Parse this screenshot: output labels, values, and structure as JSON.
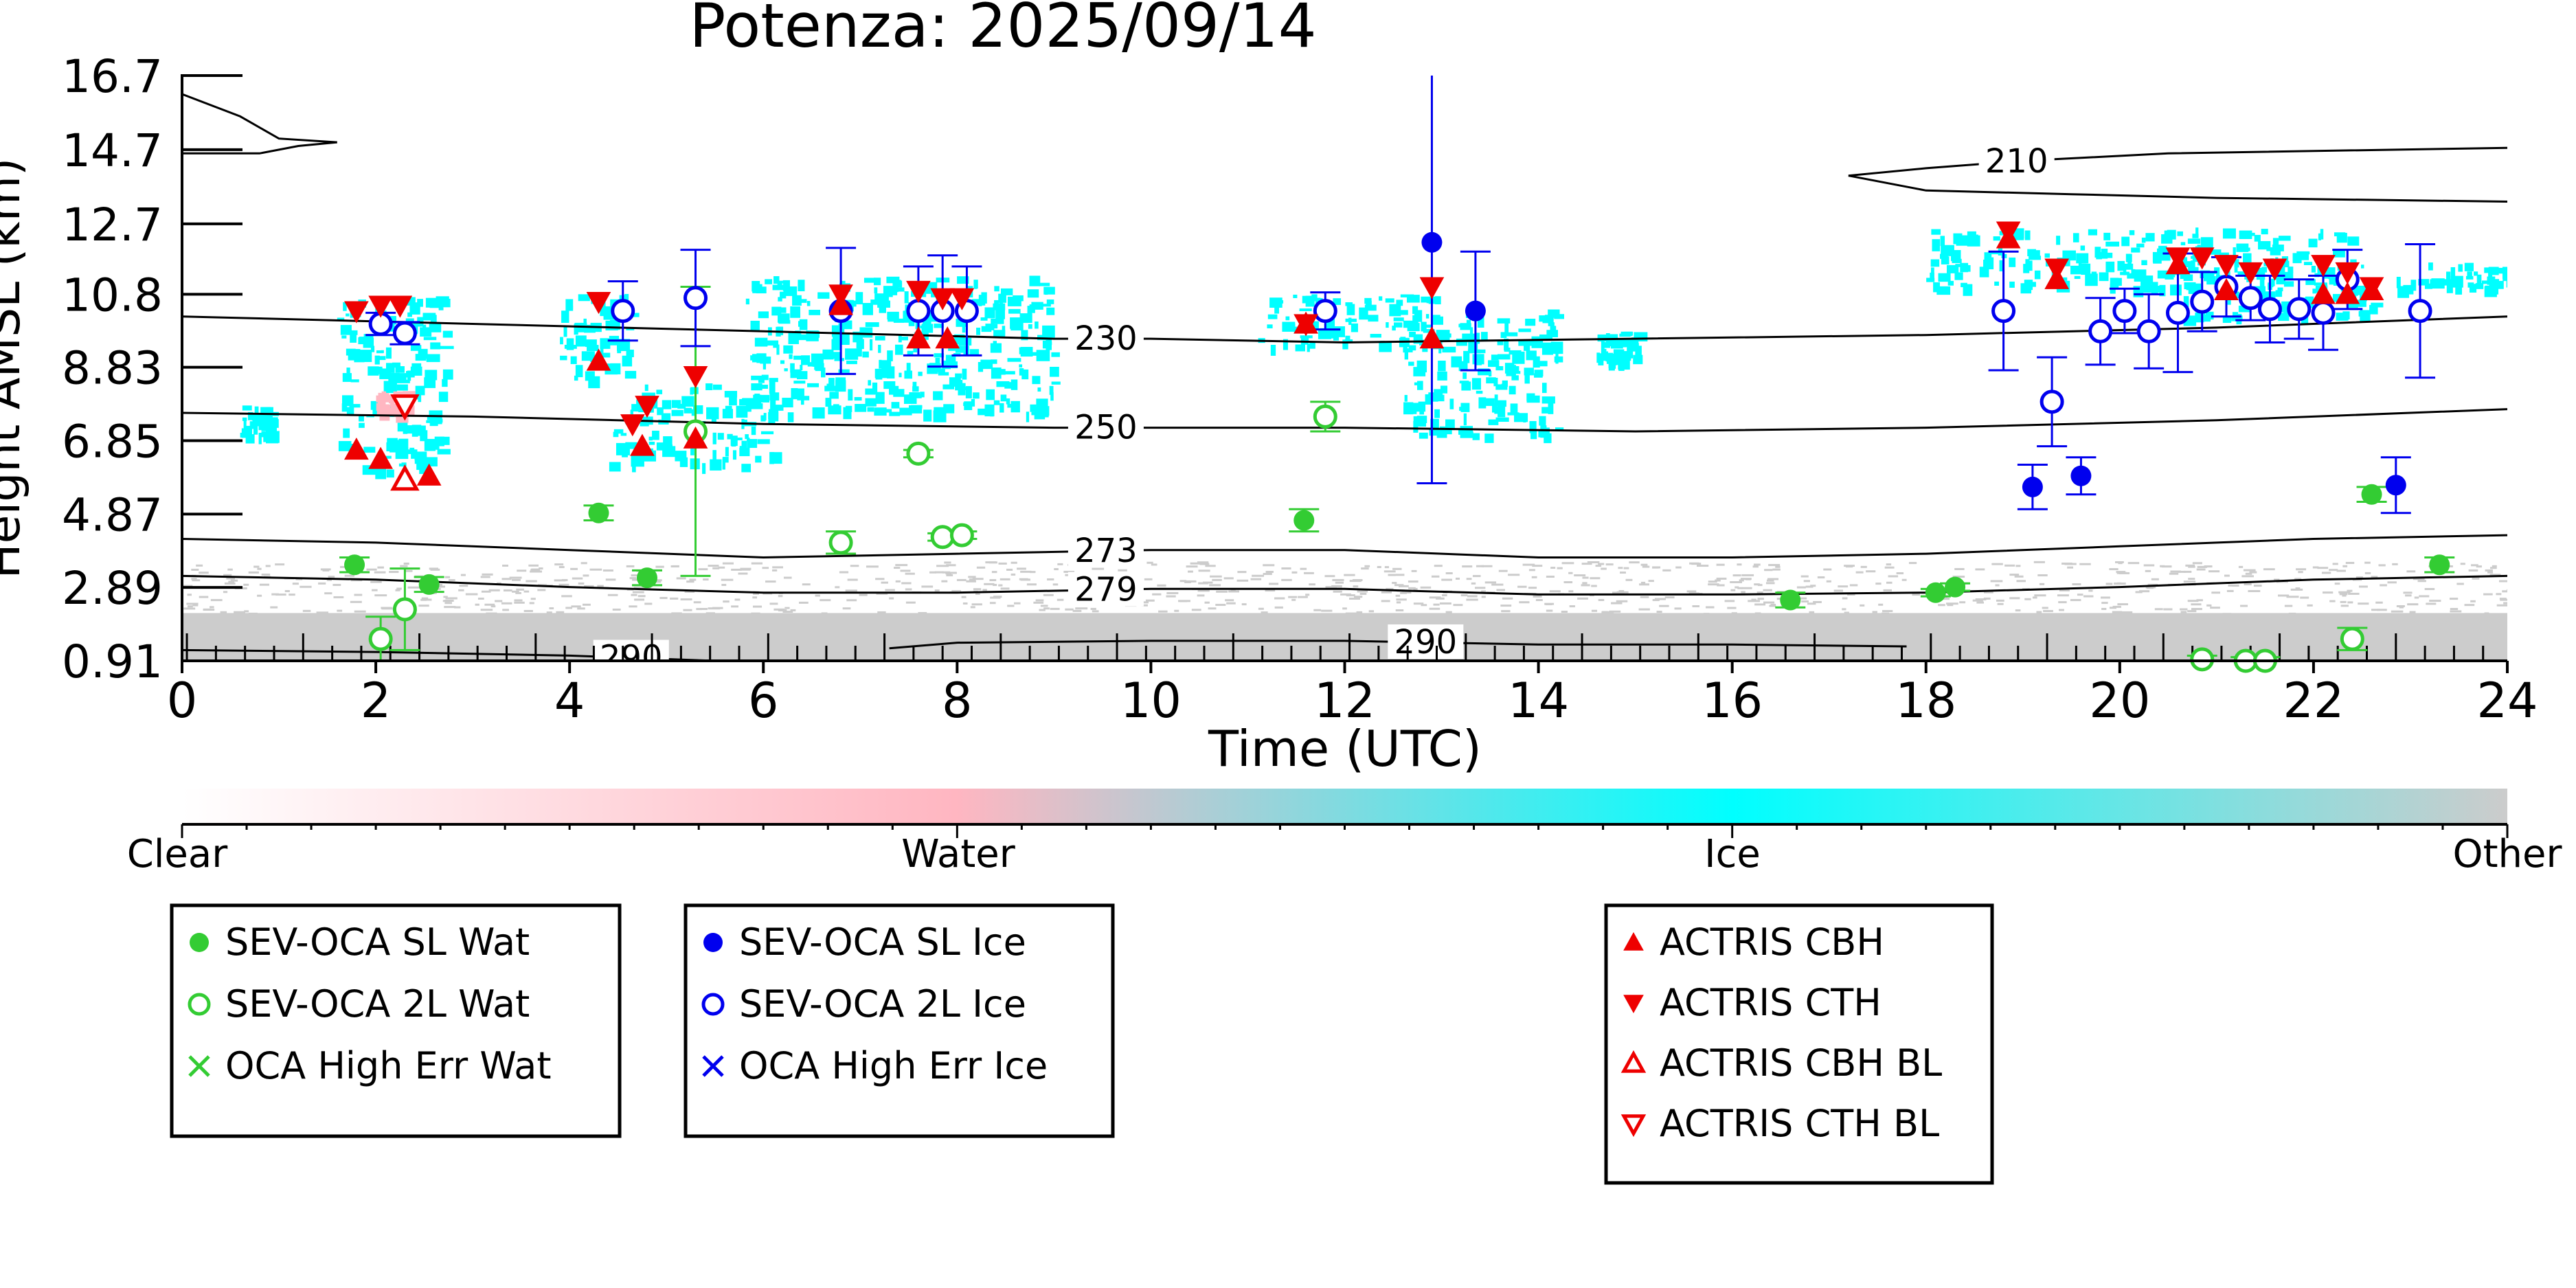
{
  "chart_data": {
    "type": "scatter",
    "title": "Potenza: 2025/09/14",
    "xlabel": "Time (UTC)",
    "ylabel": "Height AMSL (km)",
    "xlim": [
      0,
      24
    ],
    "ylim": [
      0.91,
      16.7
    ],
    "x_ticks": [
      "0",
      "2",
      "4",
      "6",
      "8",
      "10",
      "12",
      "14",
      "16",
      "18",
      "20",
      "22",
      "24"
    ],
    "y_ticks": [
      "0.91",
      "2.89",
      "4.87",
      "6.85",
      "8.83",
      "10.8",
      "12.7",
      "14.7",
      "16.7"
    ],
    "colorbar": {
      "labels": [
        "Clear",
        "Water",
        "Ice",
        "Other"
      ],
      "colors": [
        "#ffffff",
        "#ffb6c1",
        "#00ffff",
        "#cccccc"
      ]
    },
    "contours": [
      {
        "label": "210",
        "label_x": 18.9,
        "points": [
          [
            17.2,
            14.0
          ],
          [
            18.0,
            14.2
          ],
          [
            19.0,
            14.4
          ],
          [
            20.5,
            14.6
          ],
          [
            24.0,
            14.75
          ]
        ]
      },
      {
        "label": "210",
        "label_x": null,
        "points": [
          [
            17.2,
            14.0
          ],
          [
            18.0,
            13.6
          ],
          [
            19.5,
            13.5
          ],
          [
            21.0,
            13.4
          ],
          [
            24.0,
            13.3
          ]
        ]
      },
      {
        "label": "230",
        "label_x": 9.5,
        "points": [
          [
            0,
            10.2
          ],
          [
            3,
            10.0
          ],
          [
            6,
            9.8
          ],
          [
            9,
            9.6
          ],
          [
            10,
            9.6
          ],
          [
            12,
            9.5
          ],
          [
            15,
            9.6
          ],
          [
            18,
            9.7
          ],
          [
            21,
            9.9
          ],
          [
            24,
            10.2
          ]
        ]
      },
      {
        "label": "250",
        "label_x": 9.5,
        "points": [
          [
            0,
            7.6
          ],
          [
            3,
            7.5
          ],
          [
            6,
            7.3
          ],
          [
            9,
            7.2
          ],
          [
            10,
            7.2
          ],
          [
            12,
            7.2
          ],
          [
            15,
            7.1
          ],
          [
            18,
            7.2
          ],
          [
            21,
            7.4
          ],
          [
            24,
            7.7
          ]
        ]
      },
      {
        "label": "273",
        "label_x": 9.5,
        "points": [
          [
            0,
            4.2
          ],
          [
            2,
            4.1
          ],
          [
            4,
            3.9
          ],
          [
            6,
            3.7
          ],
          [
            8,
            3.8
          ],
          [
            10,
            3.9
          ],
          [
            12,
            3.9
          ],
          [
            14,
            3.7
          ],
          [
            16,
            3.7
          ],
          [
            18,
            3.8
          ],
          [
            20,
            4.0
          ],
          [
            22,
            4.2
          ],
          [
            24,
            4.3
          ]
        ]
      },
      {
        "label": "279",
        "label_x": 9.5,
        "points": [
          [
            0,
            3.2
          ],
          [
            2,
            3.1
          ],
          [
            4,
            2.9
          ],
          [
            6,
            2.75
          ],
          [
            8,
            2.75
          ],
          [
            10,
            2.85
          ],
          [
            12,
            2.85
          ],
          [
            14,
            2.7
          ],
          [
            16,
            2.7
          ],
          [
            18,
            2.75
          ],
          [
            20,
            2.9
          ],
          [
            22,
            3.1
          ],
          [
            24,
            3.2
          ]
        ]
      },
      {
        "label": "290",
        "label_x": 4.6,
        "points": [
          [
            0,
            1.2
          ],
          [
            2,
            1.15
          ],
          [
            4,
            1.05
          ],
          [
            5.5,
            0.91
          ]
        ]
      },
      {
        "label": "290",
        "label_x": 12.8,
        "points": [
          [
            7.3,
            1.25
          ],
          [
            8,
            1.4
          ],
          [
            10,
            1.45
          ],
          [
            12,
            1.45
          ],
          [
            14,
            1.35
          ],
          [
            16,
            1.35
          ],
          [
            17.8,
            1.3
          ]
        ]
      },
      {
        "label": "",
        "label_x": null,
        "points": [
          [
            0,
            16.2
          ],
          [
            0.6,
            15.6
          ],
          [
            1.0,
            15.0
          ],
          [
            1.6,
            14.9
          ]
        ]
      },
      {
        "label": "",
        "label_x": null,
        "points": [
          [
            0,
            14.6
          ],
          [
            0.8,
            14.6
          ],
          [
            1.2,
            14.8
          ],
          [
            1.6,
            14.9
          ]
        ]
      }
    ],
    "series": [
      {
        "name": "SEV-OCA SL Wat",
        "marker": "filled-circle",
        "color": "#33cc33",
        "points": [
          [
            1.78,
            3.5,
            0.2
          ],
          [
            2.55,
            2.97,
            0.2
          ],
          [
            4.3,
            4.9,
            0.2
          ],
          [
            4.8,
            3.15,
            0.2
          ],
          [
            11.58,
            4.7,
            0.3
          ],
          [
            16.6,
            2.55,
            0.2
          ],
          [
            18.1,
            2.75,
            0.1
          ],
          [
            18.3,
            2.9,
            0.1
          ],
          [
            22.6,
            5.4,
            0.2
          ],
          [
            23.3,
            3.5,
            0.2
          ]
        ]
      },
      {
        "name": "SEV-OCA 2L Wat",
        "marker": "open-circle",
        "color": "#33cc33",
        "points": [
          [
            2.05,
            1.5,
            0.6
          ],
          [
            2.3,
            2.3,
            1.1
          ],
          [
            5.3,
            7.1,
            3.9
          ],
          [
            6.8,
            4.1,
            0.3
          ],
          [
            7.6,
            6.5,
            0.1
          ],
          [
            7.85,
            4.25,
            0.1
          ],
          [
            8.05,
            4.3,
            0.1
          ],
          [
            11.8,
            7.5,
            0.4
          ],
          [
            20.85,
            0.95,
            0.1
          ],
          [
            21.3,
            0.91,
            0.1
          ],
          [
            21.5,
            0.91,
            0.1
          ],
          [
            22.4,
            1.5,
            0.3
          ]
        ]
      },
      {
        "name": "OCA High Err Wat",
        "marker": "x",
        "color": "#33cc33",
        "points": []
      },
      {
        "name": "SEV-OCA SL Ice",
        "marker": "filled-circle",
        "color": "#0000ee",
        "points": [
          [
            12.9,
            12.2,
            6.5
          ],
          [
            13.35,
            10.35,
            1.6
          ],
          [
            19.1,
            5.6,
            0.6
          ],
          [
            19.6,
            5.9,
            0.5
          ],
          [
            22.85,
            5.65,
            0.75
          ]
        ]
      },
      {
        "name": "SEV-OCA 2L Ice",
        "marker": "open-circle",
        "color": "#0000ee",
        "points": [
          [
            2.05,
            10.0,
            0.3
          ],
          [
            2.3,
            9.75,
            0.3
          ],
          [
            4.55,
            10.35,
            0.8
          ],
          [
            5.3,
            10.7,
            1.3
          ],
          [
            6.8,
            10.35,
            1.7
          ],
          [
            7.6,
            10.35,
            1.2
          ],
          [
            7.85,
            10.35,
            1.5
          ],
          [
            8.1,
            10.35,
            1.2
          ],
          [
            11.8,
            10.35,
            0.5
          ],
          [
            18.8,
            10.35,
            1.6
          ],
          [
            19.3,
            7.9,
            1.2
          ],
          [
            19.8,
            9.8,
            0.9
          ],
          [
            20.05,
            10.35,
            0.6
          ],
          [
            20.3,
            9.8,
            1.0
          ],
          [
            20.6,
            10.3,
            1.6
          ],
          [
            20.85,
            10.6,
            0.8
          ],
          [
            21.1,
            11.0,
            0.8
          ],
          [
            21.35,
            10.7,
            0.6
          ],
          [
            21.55,
            10.4,
            0.9
          ],
          [
            21.85,
            10.4,
            0.8
          ],
          [
            22.1,
            10.3,
            1.0
          ],
          [
            22.35,
            11.2,
            0.8
          ],
          [
            23.1,
            10.35,
            1.8
          ]
        ]
      },
      {
        "name": "OCA High Err Ice",
        "marker": "x",
        "color": "#0000ee",
        "points": []
      },
      {
        "name": "ACTRIS CBH",
        "marker": "triangle-up-filled",
        "color": "#ee0000",
        "points": [
          [
            1.8,
            6.6
          ],
          [
            2.05,
            6.35
          ],
          [
            2.55,
            5.9
          ],
          [
            4.3,
            9.0
          ],
          [
            4.75,
            6.7
          ],
          [
            5.3,
            6.9
          ],
          [
            6.8,
            10.5
          ],
          [
            7.6,
            9.6
          ],
          [
            7.9,
            9.6
          ],
          [
            11.6,
            10.0
          ],
          [
            12.9,
            9.6
          ],
          [
            18.85,
            12.3
          ],
          [
            19.35,
            11.2
          ],
          [
            20.6,
            11.6
          ],
          [
            21.1,
            10.9
          ],
          [
            22.1,
            10.8
          ],
          [
            22.35,
            10.8
          ],
          [
            22.6,
            10.9
          ]
        ]
      },
      {
        "name": "ACTRIS CTH",
        "marker": "triangle-down-filled",
        "color": "#ee0000",
        "points": [
          [
            1.8,
            10.35
          ],
          [
            2.05,
            10.5
          ],
          [
            2.25,
            10.5
          ],
          [
            4.3,
            10.6
          ],
          [
            4.65,
            7.3
          ],
          [
            4.8,
            7.8
          ],
          [
            5.3,
            8.6
          ],
          [
            6.8,
            10.8
          ],
          [
            7.6,
            10.9
          ],
          [
            7.85,
            10.7
          ],
          [
            8.05,
            10.7
          ],
          [
            11.6,
            10.0
          ],
          [
            12.9,
            11.0
          ],
          [
            18.85,
            12.5
          ],
          [
            19.35,
            11.5
          ],
          [
            20.6,
            11.8
          ],
          [
            20.85,
            11.8
          ],
          [
            21.1,
            11.6
          ],
          [
            21.35,
            11.4
          ],
          [
            21.6,
            11.5
          ],
          [
            22.1,
            11.6
          ],
          [
            22.35,
            11.4
          ],
          [
            22.6,
            11.0
          ]
        ]
      },
      {
        "name": "ACTRIS CBH BL",
        "marker": "triangle-up-open",
        "color": "#ee0000",
        "points": [
          [
            2.3,
            5.8
          ]
        ]
      },
      {
        "name": "ACTRIS CTH BL",
        "marker": "triangle-down-open",
        "color": "#ee0000",
        "points": [
          [
            2.3,
            7.8
          ]
        ]
      }
    ],
    "legend_groups": [
      [
        "SEV-OCA SL Wat",
        "SEV-OCA 2L Wat",
        "OCA High Err Wat"
      ],
      [
        "SEV-OCA SL Ice",
        "SEV-OCA 2L Ice",
        "OCA High Err Ice"
      ],
      [
        "ACTRIS CBH",
        "ACTRIS CTH",
        "ACTRIS CBH BL",
        "ACTRIS CTH BL"
      ]
    ],
    "cloud_regions": [
      {
        "class": "Ice",
        "x": [
          0.6,
          0.9
        ],
        "y": [
          7.0,
          7.8
        ]
      },
      {
        "class": "Ice",
        "x": [
          1.6,
          2.7
        ],
        "y": [
          6.0,
          10.8
        ]
      },
      {
        "class": "Water",
        "x": [
          2.0,
          2.3
        ],
        "y": [
          7.6,
          8.2
        ]
      },
      {
        "class": "Ice",
        "x": [
          3.9,
          4.6
        ],
        "y": [
          8.5,
          10.9
        ]
      },
      {
        "class": "Ice",
        "x": [
          4.4,
          6.1
        ],
        "y": [
          6.2,
          8.4
        ]
      },
      {
        "class": "Ice",
        "x": [
          5.8,
          9.0
        ],
        "y": [
          7.6,
          11.3
        ]
      },
      {
        "class": "Ice",
        "x": [
          11.1,
          13.0
        ],
        "y": [
          9.4,
          10.8
        ]
      },
      {
        "class": "Ice",
        "x": [
          12.6,
          14.2
        ],
        "y": [
          7.0,
          10.4
        ]
      },
      {
        "class": "Ice",
        "x": [
          14.6,
          15.0
        ],
        "y": [
          9.0,
          9.8
        ]
      },
      {
        "class": "Ice",
        "x": [
          18.0,
          22.4
        ],
        "y": [
          11.0,
          12.6
        ]
      },
      {
        "class": "Ice",
        "x": [
          20.6,
          22.6
        ],
        "y": [
          10.2,
          11.6
        ]
      },
      {
        "class": "Ice",
        "x": [
          22.8,
          24.0
        ],
        "y": [
          11.0,
          11.7
        ]
      },
      {
        "class": "Other",
        "x": [
          0,
          24.0
        ],
        "y": [
          0.91,
          3.6
        ]
      }
    ]
  }
}
